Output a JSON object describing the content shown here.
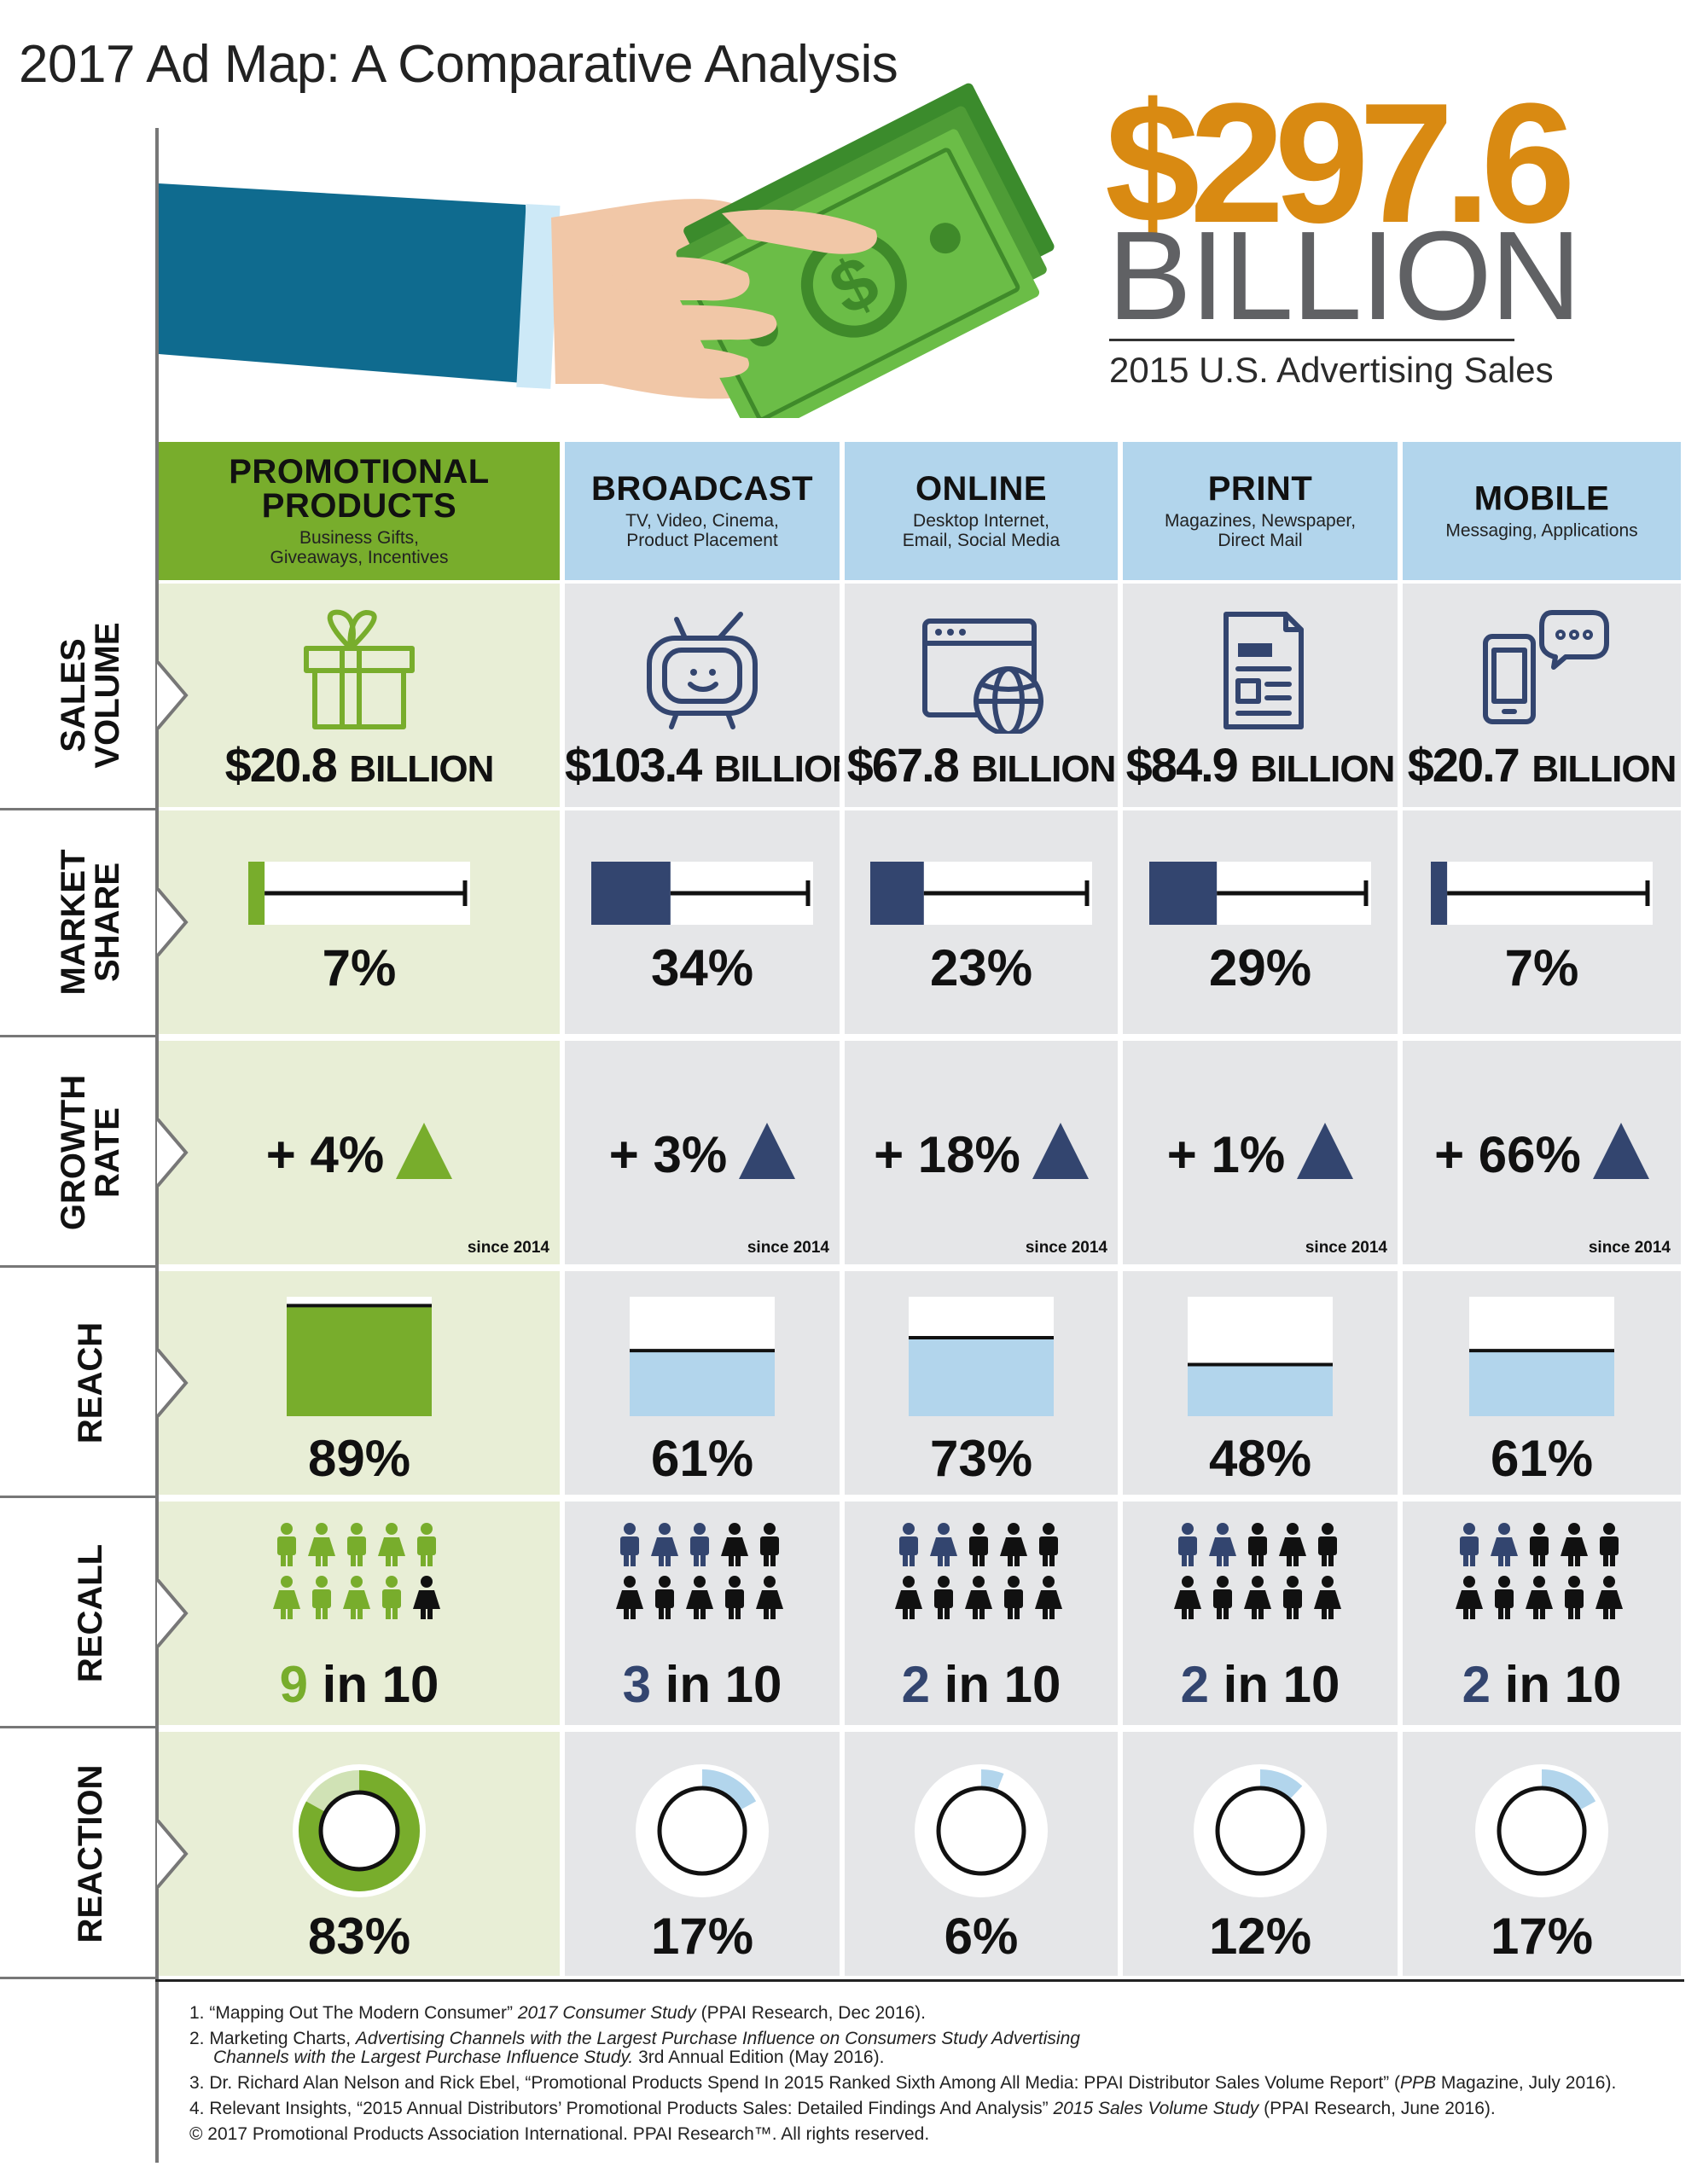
{
  "title": "2017 Ad Map: A Comparative Analysis",
  "headline": {
    "value": "$297.6",
    "unit": "BILLION",
    "caption": "2015 U.S. Advertising Sales"
  },
  "colors": {
    "green": "#78ad2c",
    "green_bg": "#e8eed6",
    "navy": "#33456f",
    "light_blue": "#b2d5ec",
    "gray_bg": "#e5e6e8",
    "orange": "#d98a12"
  },
  "row_labels": [
    "SALES\nVOLUME",
    "MARKET\nSHARE",
    "GROWTH\nRATE",
    "REACH",
    "RECALL",
    "REACTION"
  ],
  "channels": [
    {
      "name": "PROMOTIONAL\nPRODUCTS",
      "sub": "Business Gifts,\nGiveaways, Incentives",
      "icon": "gift-icon",
      "sales_num": "$20.8",
      "sales_unit": "BILLION",
      "share": "7%",
      "growth": "+ 4%",
      "since": "since 2014",
      "reach": "89%",
      "recall_num": "9",
      "recall_rest": " in 10",
      "reaction": "83%"
    },
    {
      "name": "BROADCAST",
      "sub": "TV, Video, Cinema,\nProduct Placement",
      "icon": "tv-icon",
      "sales_num": "$103.4",
      "sales_unit": "BILLION",
      "share": "34%",
      "growth": "+ 3%",
      "since": "since 2014",
      "reach": "61%",
      "recall_num": "3",
      "recall_rest": " in 10",
      "reaction": "17%"
    },
    {
      "name": "ONLINE",
      "sub": "Desktop Internet,\nEmail, Social Media",
      "icon": "browser-globe-icon",
      "sales_num": "$67.8",
      "sales_unit": "BILLION",
      "share": "23%",
      "growth": "+ 18%",
      "since": "since 2014",
      "reach": "73%",
      "recall_num": "2",
      "recall_rest": " in 10",
      "reaction": "6%"
    },
    {
      "name": "PRINT",
      "sub": "Magazines, Newspaper,\nDirect Mail",
      "icon": "newspaper-icon",
      "sales_num": "$84.9",
      "sales_unit": "BILLION",
      "share": "29%",
      "growth": "+ 1%",
      "since": "since 2014",
      "reach": "48%",
      "recall_num": "2",
      "recall_rest": " in 10",
      "reaction": "12%"
    },
    {
      "name": "MOBILE",
      "sub": "Messaging, Applications",
      "icon": "phone-chat-icon",
      "sales_num": "$20.7",
      "sales_unit": "BILLION",
      "share": "7%",
      "growth": "+ 66%",
      "since": "since 2014",
      "reach": "61%",
      "recall_num": "2",
      "recall_rest": " in 10",
      "reaction": "17%"
    }
  ],
  "chart_data": {
    "type": "table",
    "categories": [
      "PROMOTIONAL PRODUCTS",
      "BROADCAST",
      "ONLINE",
      "PRINT",
      "MOBILE"
    ],
    "series": [
      {
        "name": "SALES VOLUME",
        "values": [
          20.8,
          103.4,
          67.8,
          84.9,
          20.7
        ]
      },
      {
        "name": "MARKET SHARE",
        "values": [
          7,
          34,
          23,
          29,
          7
        ]
      },
      {
        "name": "GROWTH RATE",
        "values": [
          4,
          3,
          18,
          1,
          66
        ]
      },
      {
        "name": "REACH",
        "values": [
          89,
          61,
          73,
          48,
          61
        ]
      },
      {
        "name": "RECALL",
        "values": [
          9,
          3,
          2,
          2,
          2
        ]
      },
      {
        "name": "REACTION",
        "values": [
          83,
          17,
          6,
          12,
          17
        ]
      }
    ]
  },
  "footnotes": [
    {
      "num": "1.",
      "parts": [
        {
          "t": "“Mapping Out The Modern Consumer” "
        },
        {
          "t": "2017 Consumer Study",
          "i": true
        },
        {
          "t": " (PPAI Research, Dec 2016)."
        }
      ]
    },
    {
      "num": "2.",
      "parts": [
        {
          "t": "Marketing Charts, "
        },
        {
          "t": "Advertising Channels with the Largest Purchase Influence on Consumers Study Advertising",
          "i": true
        }
      ]
    },
    {
      "num": "",
      "parts": [
        {
          "t": "Channels with the Largest Purchase Influence Study.",
          "i": true
        },
        {
          "t": " 3rd Annual Edition (May 2016)."
        }
      ]
    },
    {
      "num": "3.",
      "parts": [
        {
          "t": "Dr. Richard Alan Nelson and Rick Ebel, “Promotional Products Spend In 2015 Ranked Sixth Among All Media: PPAI Distributor Sales Volume Report” ("
        },
        {
          "t": "PPB",
          "i": true
        },
        {
          "t": " Magazine, July 2016)."
        }
      ]
    },
    {
      "num": "4.",
      "parts": [
        {
          "t": "Relevant Insights, “2015 Annual Distributors’ Promotional Products Sales: Detailed Findings And Analysis” "
        },
        {
          "t": "2015 Sales Volume Study",
          "i": true
        },
        {
          "t": " (PPAI Research, June 2016)."
        }
      ]
    }
  ],
  "copyright": "© 2017 Promotional Products Association International. PPAI Research™. All rights reserved."
}
